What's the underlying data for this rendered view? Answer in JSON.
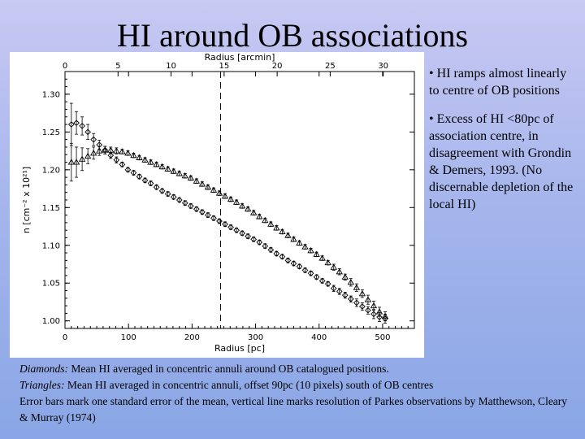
{
  "slide": {
    "title": "HI around OB associations",
    "bullets": [
      "• HI ramps almost linearly to centre of OB positions",
      "• Excess of HI <80pc of association centre, in disagreement with Grondin & Demers, 1993. (No discernable depletion of the local HI)"
    ],
    "caption": {
      "diamonds_label": "Diamonds:",
      "diamonds_text": " Mean HI averaged in concentric annuli around OB catalogued positions.",
      "triangles_label": "Triangles:",
      "triangles_text": " Mean HI averaged in concentric annuli, offset 90pc (10 pixels) south of OB centres",
      "errorbar_text": "Error bars mark one standard error of the mean, vertical line marks resolution of Parkes observations by Matthewson, Cleary & Murray (1974)"
    }
  },
  "chart_data": {
    "type": "scatter",
    "title": "",
    "xlabel": "Radius [pc]",
    "ylabel": "n [cm⁻² x 10²¹]",
    "top_axis_label": "Radius [arcmin]",
    "xlim": [
      0,
      550
    ],
    "ylim": [
      0.99,
      1.33
    ],
    "x_ticks": [
      0,
      100,
      200,
      300,
      400,
      500
    ],
    "x_tick_labels": [
      "0",
      "100",
      "200",
      "300",
      "400",
      "500"
    ],
    "y_ticks": [
      1.0,
      1.05,
      1.1,
      1.15,
      1.2,
      1.25,
      1.3
    ],
    "y_tick_labels": [
      "1.00",
      "1.05",
      "1.10",
      "1.15",
      "1.20",
      "1.25",
      "1.30"
    ],
    "top_ticks_arcmin": [
      0,
      5,
      10,
      15,
      20,
      25,
      30
    ],
    "top_tick_labels": [
      "0",
      "5",
      "10",
      "15",
      "20",
      "25",
      "30"
    ],
    "pc_per_arcmin": 16.7,
    "resolution_line_x": 245,
    "series": [
      {
        "name": "Diamonds",
        "marker": "diamond",
        "x": [
          10,
          18,
          27,
          36,
          45,
          54,
          63,
          72,
          81,
          90,
          99,
          108,
          117,
          126,
          135,
          144,
          153,
          162,
          171,
          180,
          189,
          198,
          207,
          216,
          225,
          234,
          243,
          252,
          261,
          270,
          279,
          288,
          297,
          306,
          315,
          324,
          333,
          342,
          351,
          360,
          369,
          378,
          387,
          396,
          405,
          414,
          423,
          432,
          441,
          450,
          459,
          468,
          477,
          486,
          495,
          504
        ],
        "y": [
          1.26,
          1.262,
          1.258,
          1.25,
          1.24,
          1.233,
          1.226,
          1.219,
          1.213,
          1.207,
          1.2,
          1.196,
          1.191,
          1.186,
          1.182,
          1.177,
          1.172,
          1.168,
          1.164,
          1.16,
          1.156,
          1.152,
          1.148,
          1.144,
          1.14,
          1.136,
          1.132,
          1.128,
          1.124,
          1.12,
          1.116,
          1.112,
          1.108,
          1.104,
          1.099,
          1.094,
          1.089,
          1.085,
          1.08,
          1.076,
          1.072,
          1.067,
          1.063,
          1.058,
          1.053,
          1.049,
          1.043,
          1.039,
          1.034,
          1.029,
          1.024,
          1.019,
          1.014,
          1.009,
          1.005,
          1.003
        ],
        "err": [
          0.028,
          0.015,
          0.012,
          0.01,
          0.008,
          0.006,
          0.005,
          0.004,
          0.004,
          0.003,
          0.003,
          0.003,
          0.003,
          0.003,
          0.003,
          0.003,
          0.003,
          0.003,
          0.003,
          0.003,
          0.003,
          0.003,
          0.003,
          0.003,
          0.003,
          0.003,
          0.003,
          0.003,
          0.003,
          0.003,
          0.003,
          0.003,
          0.003,
          0.003,
          0.003,
          0.003,
          0.003,
          0.003,
          0.003,
          0.003,
          0.003,
          0.003,
          0.003,
          0.003,
          0.003,
          0.003,
          0.004,
          0.004,
          0.004,
          0.004,
          0.005,
          0.005,
          0.005,
          0.006,
          0.006,
          0.006
        ]
      },
      {
        "name": "Triangles",
        "marker": "triangle",
        "x": [
          10,
          18,
          27,
          36,
          45,
          54,
          63,
          72,
          81,
          90,
          99,
          108,
          117,
          126,
          135,
          144,
          153,
          162,
          171,
          180,
          189,
          198,
          207,
          216,
          225,
          234,
          243,
          252,
          261,
          270,
          279,
          288,
          297,
          306,
          315,
          324,
          333,
          342,
          351,
          360,
          369,
          378,
          387,
          396,
          405,
          414,
          423,
          432,
          441,
          450,
          459,
          468,
          477,
          486,
          495,
          504
        ],
        "y": [
          1.21,
          1.21,
          1.214,
          1.218,
          1.222,
          1.225,
          1.226,
          1.226,
          1.225,
          1.224,
          1.222,
          1.219,
          1.216,
          1.213,
          1.21,
          1.207,
          1.204,
          1.201,
          1.198,
          1.195,
          1.192,
          1.189,
          1.185,
          1.181,
          1.177,
          1.173,
          1.169,
          1.165,
          1.161,
          1.157,
          1.152,
          1.148,
          1.143,
          1.138,
          1.133,
          1.128,
          1.123,
          1.118,
          1.113,
          1.108,
          1.103,
          1.098,
          1.093,
          1.088,
          1.083,
          1.077,
          1.071,
          1.065,
          1.058,
          1.051,
          1.044,
          1.036,
          1.028,
          1.02,
          1.012,
          1.006
        ],
        "err": [
          0.025,
          0.02,
          0.015,
          0.01,
          0.008,
          0.006,
          0.005,
          0.004,
          0.004,
          0.003,
          0.003,
          0.003,
          0.003,
          0.003,
          0.003,
          0.003,
          0.003,
          0.003,
          0.003,
          0.003,
          0.003,
          0.003,
          0.003,
          0.003,
          0.003,
          0.003,
          0.003,
          0.003,
          0.003,
          0.003,
          0.003,
          0.003,
          0.003,
          0.003,
          0.003,
          0.003,
          0.003,
          0.003,
          0.003,
          0.003,
          0.003,
          0.003,
          0.003,
          0.003,
          0.003,
          0.003,
          0.004,
          0.004,
          0.004,
          0.005,
          0.005,
          0.005,
          0.006,
          0.006,
          0.006,
          0.006
        ]
      }
    ]
  }
}
